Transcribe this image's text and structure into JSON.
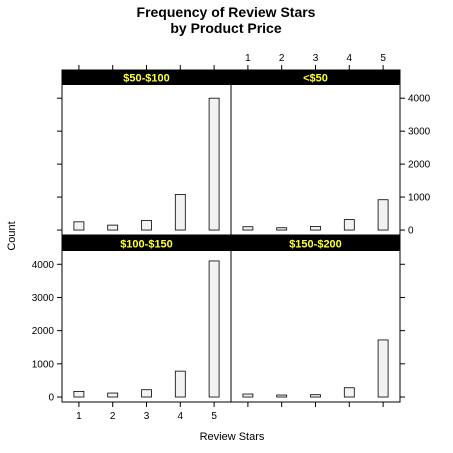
{
  "chart_data": {
    "type": "bar",
    "title": [
      "Frequency of Review Stars",
      "by Product Price"
    ],
    "xlabel": "Review Stars",
    "ylabel": "Count",
    "x_ticks": [
      "1",
      "2",
      "3",
      "4",
      "5"
    ],
    "y_ticks": [
      "0",
      "1000",
      "2000",
      "3000",
      "4000"
    ],
    "ylim": [
      -150,
      4400
    ],
    "strip_bg": "#000000",
    "strip_text_color": "#FFFF33",
    "bar_fill": "#F2F2F2",
    "panels": [
      {
        "name": "$50-$100",
        "values": [
          250,
          150,
          290,
          1080,
          4000
        ]
      },
      {
        "name": "<$50",
        "values": [
          100,
          70,
          110,
          320,
          920
        ]
      },
      {
        "name": "$100-$150",
        "values": [
          170,
          120,
          220,
          780,
          4100
        ]
      },
      {
        "name": "$150-$200",
        "values": [
          90,
          60,
          70,
          280,
          1720
        ]
      }
    ]
  }
}
